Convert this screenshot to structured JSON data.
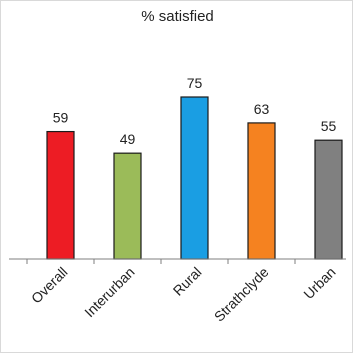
{
  "chart_data": {
    "type": "bar",
    "title": "% satisfied",
    "xlabel": "",
    "ylabel": "",
    "ylim": [
      0,
      100
    ],
    "grid": false,
    "categories": [
      "Overall",
      "Interurban",
      "Rural",
      "Strathclyde",
      "Urban"
    ],
    "values": [
      59,
      49,
      75,
      63,
      55
    ],
    "data_labels": [
      "59",
      "49",
      "75",
      "63",
      "55"
    ],
    "colors": [
      "#ed1c24",
      "#9bbb59",
      "#1a9ee3",
      "#f58220",
      "#808080"
    ]
  }
}
